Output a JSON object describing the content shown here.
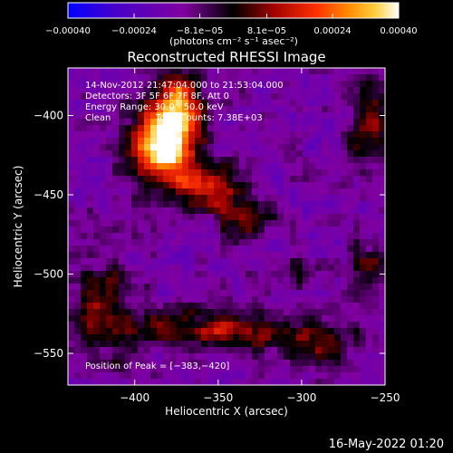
{
  "chart_data": {
    "type": "heatmap",
    "title": "Reconstructed RHESSI Image",
    "xlabel": "Heliocentric X (arcsec)",
    "ylabel": "Heliocentric Y (arcsec)",
    "xlim": [
      -440,
      -250
    ],
    "ylim": [
      -570,
      -370
    ],
    "x_ticks": [
      -400,
      -350,
      -300,
      -250
    ],
    "x_tick_labels": [
      "−400",
      "−350",
      "−300",
      "−250"
    ],
    "y_ticks": [
      -400,
      -450,
      -500,
      -550
    ],
    "y_tick_labels": [
      "−400",
      "−450",
      "−500",
      "−550"
    ],
    "colorbar": {
      "range": [
        -0.0004,
        0.0004
      ],
      "tick_values": [
        -0.0004,
        -0.00024,
        -8.1e-05,
        8.1e-05,
        0.00024,
        0.0004
      ],
      "tick_labels": [
        "−0.00040",
        "−0.00024",
        "−8.1e−05",
        "8.1e−05",
        "0.00024",
        "0.00040"
      ],
      "unit_label": "(photons cm⁻² s⁻¹ asec⁻²)",
      "colors": [
        "#0000ff",
        "#4a00c8",
        "#8000a0",
        "#000000",
        "#a00000",
        "#ff3000",
        "#ff8c00",
        "#ffd040",
        "#ffffff"
      ]
    },
    "annotations": {
      "time": "14-Nov-2012 21:47:04.000 to 21:53:04.000",
      "detectors": "Detectors: 3F 5F 6F 7F 8F, Att 0",
      "energy": "Energy Range: 30.0 - 50.0 keV",
      "method": "Clean",
      "counts": "Total Counts: 7.38E+03",
      "peak": "Position of Peak = [−383,−420]"
    },
    "peak_position": [
      -383,
      -420
    ]
  },
  "footer": {
    "date": "16-May-2022 01:20"
  }
}
